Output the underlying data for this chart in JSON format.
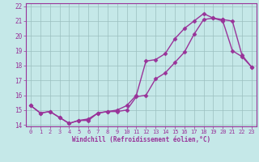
{
  "line1_x": [
    0,
    1,
    2,
    3,
    4,
    5,
    6,
    7,
    8,
    9,
    10,
    11,
    12,
    13,
    14,
    15,
    16,
    17,
    18,
    19,
    20
  ],
  "line1_y": [
    15.3,
    14.8,
    14.9,
    14.5,
    14.1,
    14.3,
    14.4,
    14.8,
    14.9,
    15.0,
    15.3,
    16.0,
    18.3,
    18.4,
    18.8,
    19.8,
    20.5,
    21.0,
    21.5,
    21.2,
    21.1
  ],
  "line2_x": [
    0,
    1,
    2,
    3,
    4,
    5,
    6,
    7,
    8,
    9,
    10,
    11,
    12,
    13,
    14,
    15,
    16,
    17,
    18,
    19,
    20,
    21,
    22,
    23
  ],
  "line2_y": [
    15.3,
    14.8,
    14.9,
    14.5,
    14.1,
    14.3,
    14.3,
    14.8,
    14.9,
    14.9,
    15.0,
    15.9,
    16.0,
    17.1,
    17.5,
    18.2,
    18.9,
    20.1,
    21.1,
    21.2,
    21.0,
    19.0,
    18.6,
    17.9
  ],
  "line3_x": [
    20,
    21,
    22,
    23
  ],
  "line3_y": [
    21.1,
    21.0,
    18.7,
    17.9
  ],
  "color": "#993399",
  "bg_color": "#c5e8e8",
  "xlim_min": -0.5,
  "xlim_max": 23.5,
  "ylim_min": 13.9,
  "ylim_max": 22.2,
  "xlabel": "Windchill (Refroidissement éolien,°C)",
  "xticks": [
    0,
    1,
    2,
    3,
    4,
    5,
    6,
    7,
    8,
    9,
    10,
    11,
    12,
    13,
    14,
    15,
    16,
    17,
    18,
    19,
    20,
    21,
    22,
    23
  ],
  "yticks": [
    14,
    15,
    16,
    17,
    18,
    19,
    20,
    21,
    22
  ],
  "grid_color": "#9bbfbf",
  "marker": "D",
  "marker_size": 2.5,
  "line_width": 1.0,
  "tick_fontsize": 5.0,
  "xlabel_fontsize": 5.5
}
